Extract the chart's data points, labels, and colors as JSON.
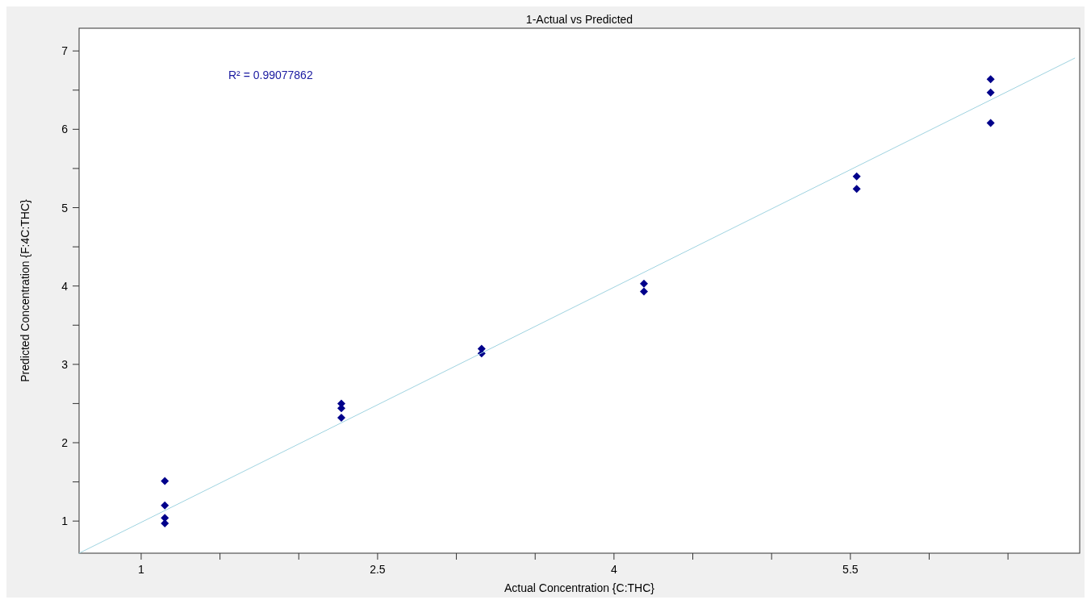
{
  "chart_data": {
    "type": "scatter",
    "title": "1-Actual vs Predicted",
    "xlabel": "Actual Concentration {C:THC}",
    "ylabel": "Predicted Concentration {F:4C:THC}",
    "annotations": [
      "R² = 0.99077862"
    ],
    "xlim": [
      0.606,
      6.955
    ],
    "ylim": [
      0.59,
      7.29
    ],
    "xticks": [
      1,
      {
        "value": 1.5,
        "label": null
      },
      {
        "value": 2,
        "label": null
      },
      2.5,
      {
        "value": 3,
        "label": null
      },
      {
        "value": 3.5,
        "label": null
      },
      4,
      {
        "value": 4.5,
        "label": null
      },
      {
        "value": 5,
        "label": null
      },
      5.5,
      {
        "value": 6,
        "label": null
      },
      {
        "value": 6.5,
        "label": null
      }
    ],
    "yticks": [
      1,
      {
        "value": 1.5,
        "label": null
      },
      2,
      {
        "value": 2.5,
        "label": null
      },
      3,
      {
        "value": 3.5,
        "label": null
      },
      4,
      {
        "value": 4.5,
        "label": null
      },
      5,
      {
        "value": 5.5,
        "label": null
      },
      6,
      {
        "value": 6.5,
        "label": null
      },
      7
    ],
    "grid": false,
    "series": [
      {
        "marker": "diamond",
        "color": "#00008b",
        "x": [
          1.15,
          1.15,
          1.15,
          1.15,
          2.27,
          2.27,
          2.27,
          3.16,
          3.16,
          4.19,
          4.19,
          5.54,
          5.54,
          6.39,
          6.39,
          6.39
        ],
        "values": [
          1.51,
          1.2,
          1.04,
          0.97,
          2.5,
          2.44,
          2.32,
          3.2,
          3.14,
          4.03,
          3.93,
          5.4,
          5.24,
          6.64,
          6.47,
          6.08
        ]
      },
      {
        "type": "line",
        "marker": "none",
        "color": "#9fd3e0",
        "x": [
          0.606,
          6.925
        ],
        "values": [
          0.59,
          6.91
        ]
      }
    ]
  }
}
